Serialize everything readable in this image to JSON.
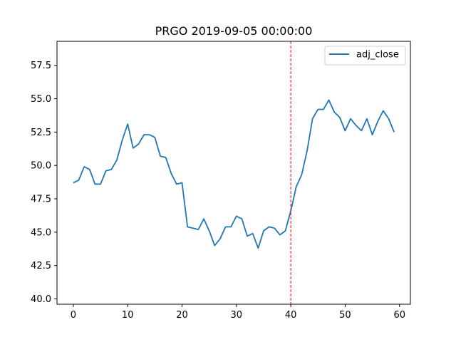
{
  "chart_data": {
    "type": "line",
    "title": "PRGO 2019-09-05 00:00:00",
    "xlabel": "",
    "ylabel": "",
    "xlim": [
      -3,
      62
    ],
    "ylim": [
      39.6,
      59.3
    ],
    "xticks": [
      0,
      10,
      20,
      30,
      40,
      50,
      60
    ],
    "yticks": [
      40.0,
      42.5,
      45.0,
      47.5,
      50.0,
      52.5,
      55.0,
      57.5
    ],
    "ytick_labels": [
      "40.0",
      "42.5",
      "45.0",
      "47.5",
      "50.0",
      "52.5",
      "55.0",
      "57.5"
    ],
    "grid": false,
    "legend": "top-right",
    "series": [
      {
        "name": "adj_close",
        "color": "#1f77b4",
        "x": [
          0,
          1,
          2,
          3,
          4,
          5,
          6,
          7,
          8,
          9,
          10,
          11,
          12,
          13,
          14,
          15,
          16,
          17,
          18,
          19,
          20,
          21,
          22,
          23,
          24,
          25,
          26,
          27,
          28,
          29,
          30,
          31,
          32,
          33,
          34,
          35,
          36,
          37,
          38,
          39,
          40,
          41,
          42,
          43,
          44,
          45,
          46,
          47,
          48,
          49,
          50,
          51,
          52,
          53,
          54,
          55,
          56,
          57,
          58,
          59
        ],
        "values": [
          48.7,
          48.9,
          49.9,
          49.7,
          48.6,
          48.6,
          49.6,
          49.7,
          50.4,
          51.9,
          53.1,
          51.3,
          51.6,
          52.3,
          52.3,
          52.1,
          50.7,
          50.6,
          49.4,
          48.6,
          48.7,
          45.4,
          45.3,
          45.2,
          46.0,
          45.1,
          44.0,
          44.5,
          45.4,
          45.4,
          46.2,
          46.0,
          44.7,
          44.9,
          43.8,
          45.1,
          45.4,
          45.3,
          44.8,
          45.1,
          46.6,
          48.4,
          49.3,
          51.1,
          53.5,
          54.2,
          54.2,
          54.9,
          54.0,
          53.6,
          52.6,
          53.5,
          53.0,
          52.6,
          53.5,
          52.3,
          53.3,
          54.1,
          53.5,
          52.5
        ]
      }
    ],
    "annotations": [
      {
        "type": "vline",
        "x": 40,
        "color": "#ff0000",
        "style": "dashed"
      }
    ]
  }
}
